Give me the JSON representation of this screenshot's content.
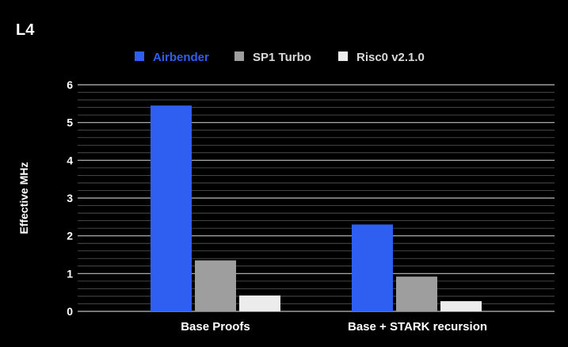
{
  "chart_data": {
    "type": "bar",
    "title": "L4",
    "xlabel": "",
    "ylabel": "Effective MHz",
    "categories": [
      "Base Proofs",
      "Base + STARK recursion"
    ],
    "series": [
      {
        "name": "Airbender",
        "color": "#2f5ff0",
        "values": [
          5.45,
          2.3
        ]
      },
      {
        "name": "SP1 Turbo",
        "color": "#9e9e9e",
        "values": [
          1.35,
          0.92
        ]
      },
      {
        "name": "Risc0 v2.1.0",
        "color": "#ececec",
        "values": [
          0.42,
          0.27
        ]
      }
    ],
    "ylim": [
      0,
      6
    ],
    "yticks": [
      0,
      1,
      2,
      3,
      4,
      5,
      6
    ],
    "minor_per_major": 5,
    "grid": true,
    "legend_position": "top-center",
    "background": "#000000",
    "grid_color": "#bdbdbd"
  }
}
